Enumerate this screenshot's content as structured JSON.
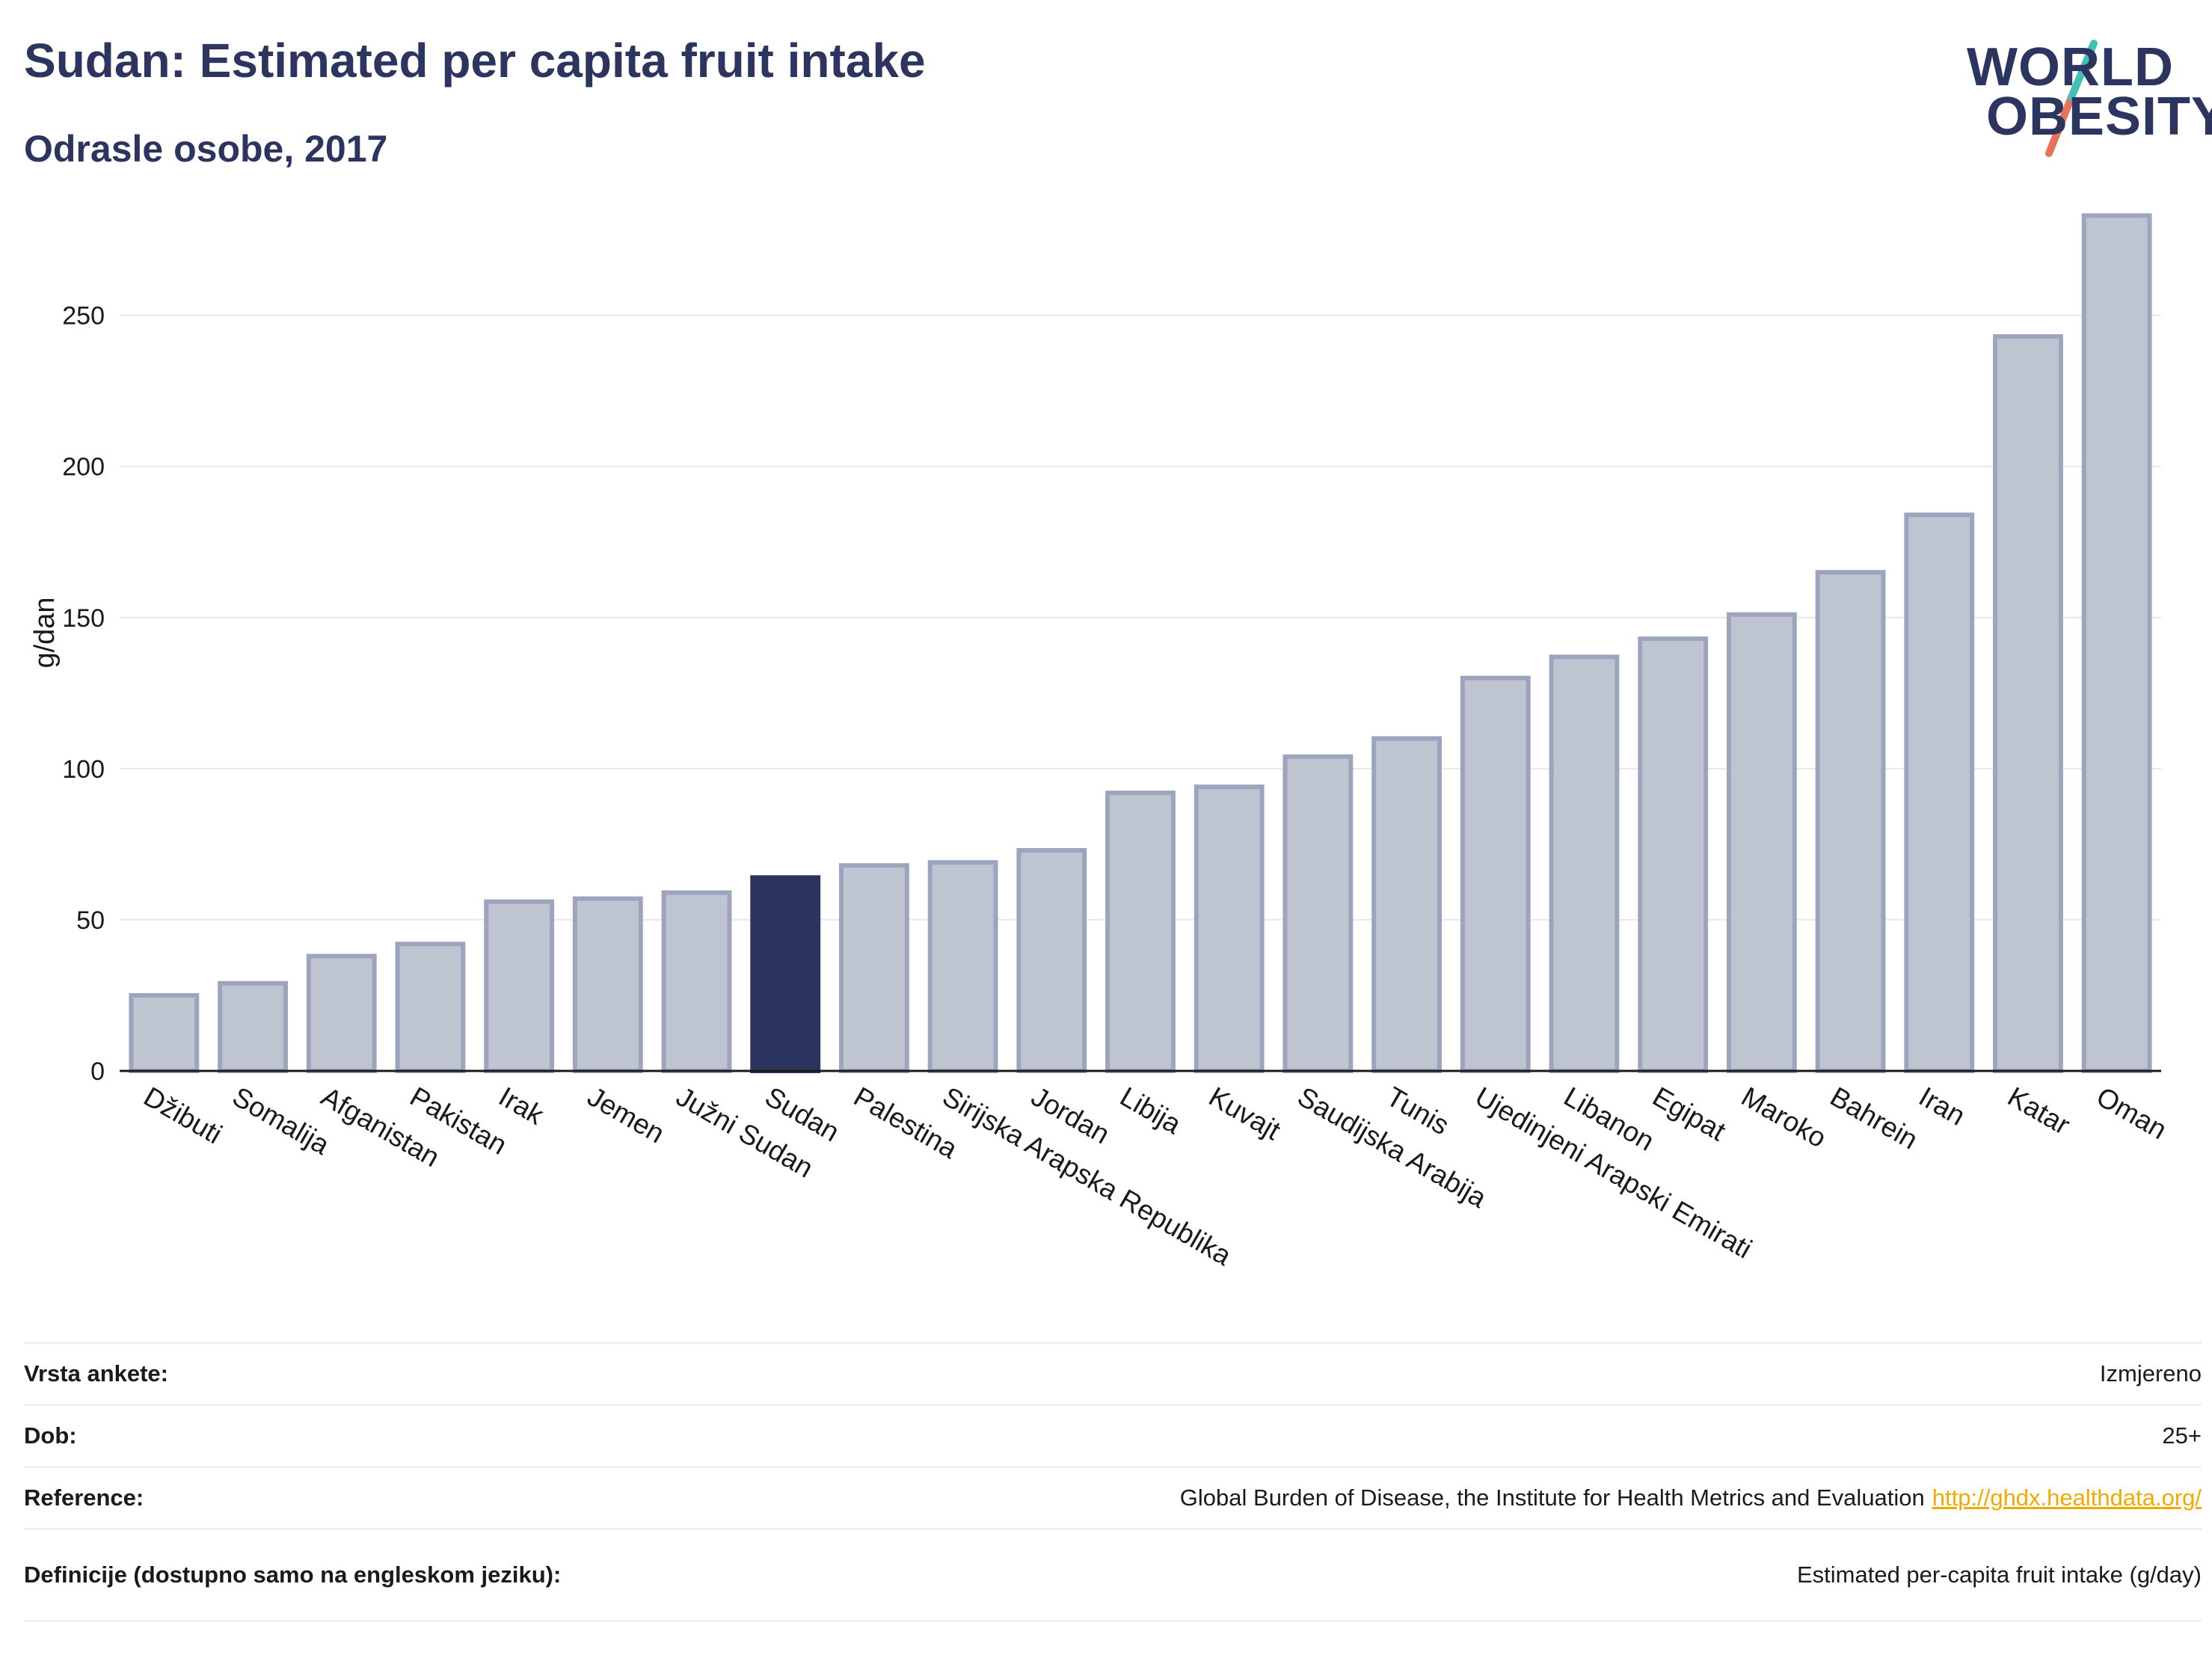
{
  "header": {
    "title": "Sudan: Estimated per capita fruit intake",
    "subtitle": "Odrasle osobe, 2017"
  },
  "logo": {
    "line1": "WORLD",
    "line2": "OBESITY",
    "colors": {
      "navy": "#2b3560",
      "teal": "#3fc1b6",
      "coral": "#e8735c"
    }
  },
  "chart_data": {
    "type": "bar",
    "ylabel": "g/dan",
    "ylim": [
      0,
      290
    ],
    "yticks": [
      0,
      50,
      100,
      150,
      200,
      250
    ],
    "grid": true,
    "highlight": "Sudan",
    "colors": {
      "default": "#bfc4d1",
      "default_border": "#9da5be",
      "highlight": "#2b3560"
    },
    "categories": [
      "Džibuti",
      "Somalija",
      "Afganistan",
      "Pakistan",
      "Irak",
      "Jemen",
      "Južni Sudan",
      "Sudan",
      "Palestina",
      "Sirijska Arapska Republika",
      "Jordan",
      "Libija",
      "Kuvajt",
      "Saudijska Arabija",
      "Tunis",
      "Ujedinjeni Arapski Emirati",
      "Libanon",
      "Egipat",
      "Maroko",
      "Bahrein",
      "Iran",
      "Katar",
      "Oman"
    ],
    "values": [
      25,
      29,
      38,
      42,
      56,
      57,
      59,
      64,
      68,
      69,
      73,
      92,
      94,
      104,
      110,
      130,
      137,
      143,
      151,
      165,
      184,
      243,
      283
    ]
  },
  "info_table": [
    {
      "key": "Vrsta ankete:",
      "value": "Izmjereno"
    },
    {
      "key": "Dob:",
      "value": "25+"
    },
    {
      "key": "Reference:",
      "value": "Global Burden of Disease, the Institute for Health Metrics and Evaluation",
      "link": "http://ghdx.healthdata.org/"
    },
    {
      "key": "Definicije (dostupno samo na engleskom jeziku):",
      "value": "Estimated per-capita fruit intake (g/day)"
    }
  ]
}
